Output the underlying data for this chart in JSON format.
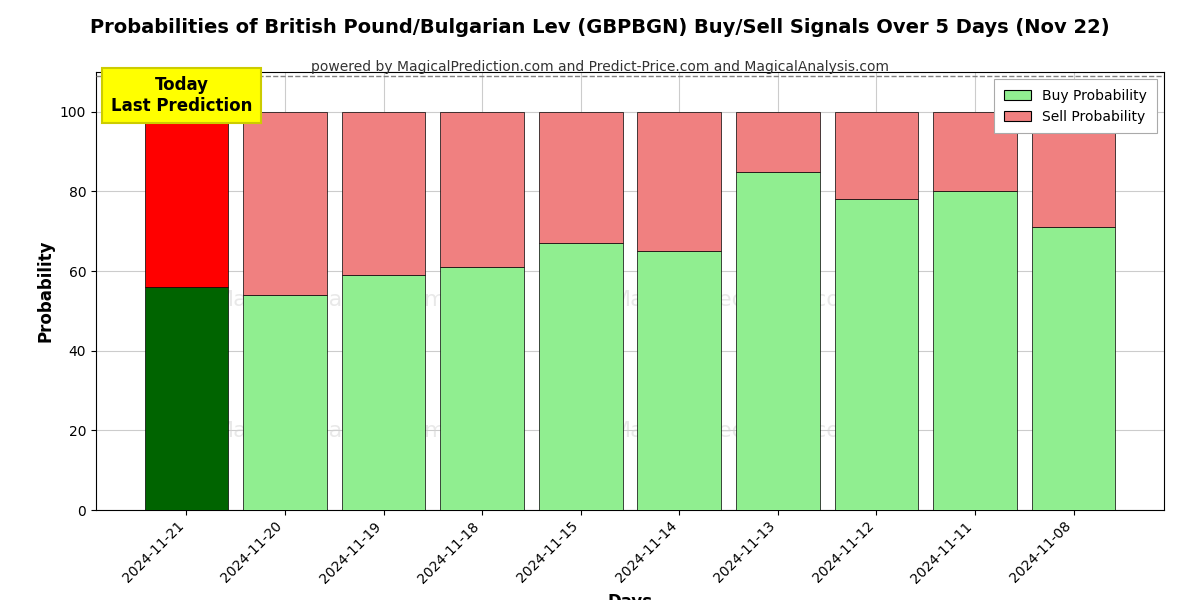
{
  "title": "Probabilities of British Pound/Bulgarian Lev (GBPBGN) Buy/Sell Signals Over 5 Days (Nov 22)",
  "subtitle": "powered by MagicalPrediction.com and Predict-Price.com and MagicalAnalysis.com",
  "xlabel": "Days",
  "ylabel": "Probability",
  "categories": [
    "2024-11-21",
    "2024-11-20",
    "2024-11-19",
    "2024-11-18",
    "2024-11-15",
    "2024-11-14",
    "2024-11-13",
    "2024-11-12",
    "2024-11-11",
    "2024-11-08"
  ],
  "buy_values": [
    56,
    54,
    59,
    61,
    67,
    65,
    85,
    78,
    80,
    71
  ],
  "sell_values": [
    44,
    46,
    41,
    39,
    33,
    35,
    15,
    22,
    20,
    29
  ],
  "buy_color_today": "#006400",
  "sell_color_today": "#FF0000",
  "buy_color_normal": "#90EE90",
  "sell_color_normal": "#F08080",
  "today_annotation": "Today\nLast Prediction",
  "annotation_bg_color": "#FFFF00",
  "legend_buy_label": "Buy Probability",
  "legend_sell_label": "Sell Probability",
  "ylim": [
    0,
    110
  ],
  "yticks": [
    0,
    20,
    40,
    60,
    80,
    100
  ],
  "dashed_line_y": 109,
  "background_color": "#FFFFFF",
  "grid_color": "#CCCCCC",
  "title_fontsize": 14,
  "subtitle_fontsize": 10,
  "bar_width": 0.85
}
